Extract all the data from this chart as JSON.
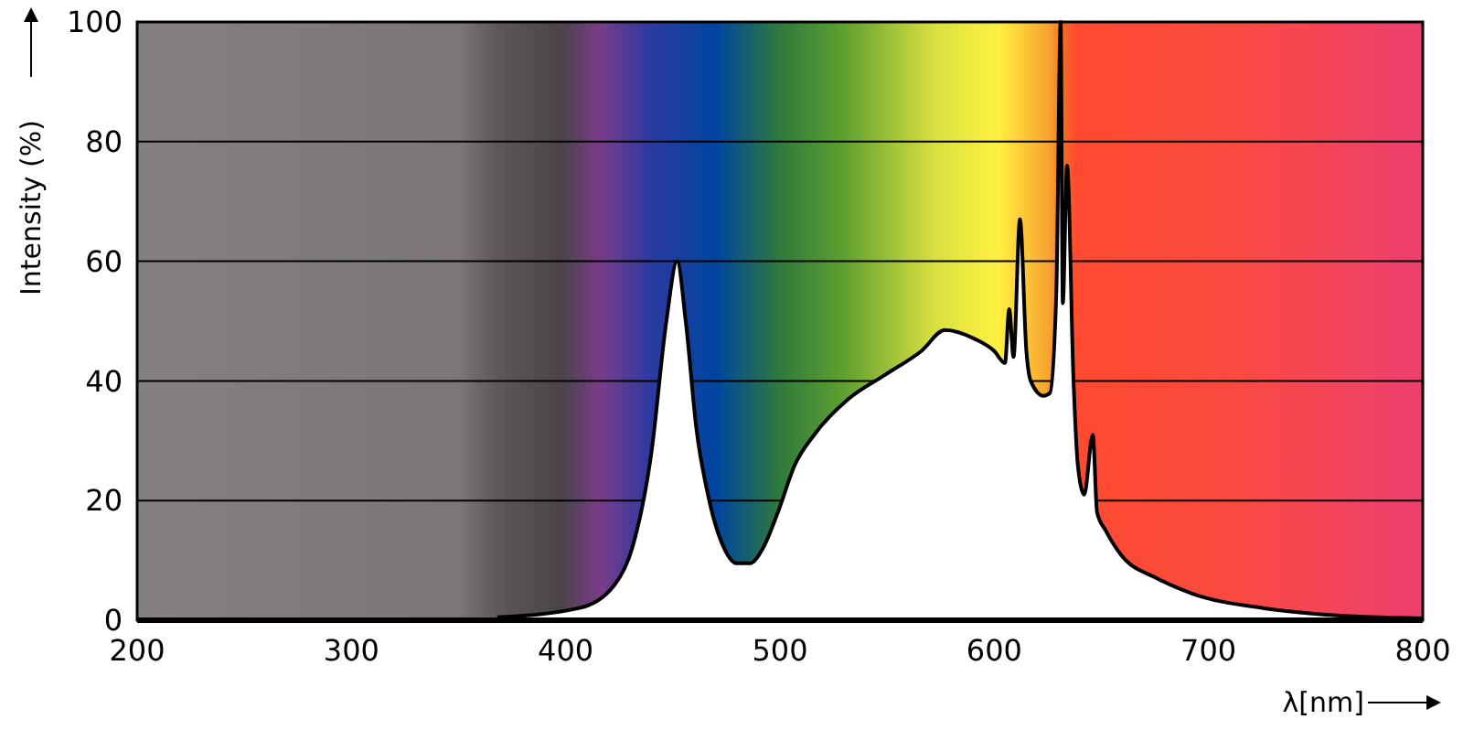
{
  "chart_data": {
    "type": "area",
    "xlabel": "λ[nm]",
    "ylabel": "Intensity (%)",
    "xlim": [
      200,
      800
    ],
    "xticks": [
      200,
      300,
      400,
      500,
      600,
      700,
      800
    ],
    "ylim": [
      0,
      100
    ],
    "yticks": [
      0,
      20,
      40,
      60,
      80,
      100
    ],
    "grid": "y",
    "series": [
      {
        "color": "#ffffff",
        "x": [
          368,
          406,
          423,
          431,
          440,
          447,
          452,
          456,
          461,
          467,
          474,
          480,
          486,
          492,
          499,
          507,
          516,
          532,
          549,
          566,
          577,
          591,
          600,
          605,
          607,
          609,
          612,
          615,
          617,
          623,
          626,
          629,
          631,
          632,
          634,
          637,
          639,
          642,
          646,
          648,
          652,
          659,
          676,
          692,
          726,
          760,
          800
        ],
        "values": [
          0.5,
          2,
          6,
          12,
          28,
          50,
          60,
          50,
          32,
          20,
          12,
          9.5,
          9.5,
          12,
          18,
          26,
          31,
          37,
          41,
          45,
          48.5,
          47,
          45,
          43,
          52,
          44,
          67,
          45,
          40,
          37.5,
          38,
          55,
          100,
          53,
          76,
          40,
          26,
          21,
          31,
          18,
          15,
          11,
          7,
          4.5,
          2,
          0.8,
          0.3
        ]
      }
    ]
  }
}
